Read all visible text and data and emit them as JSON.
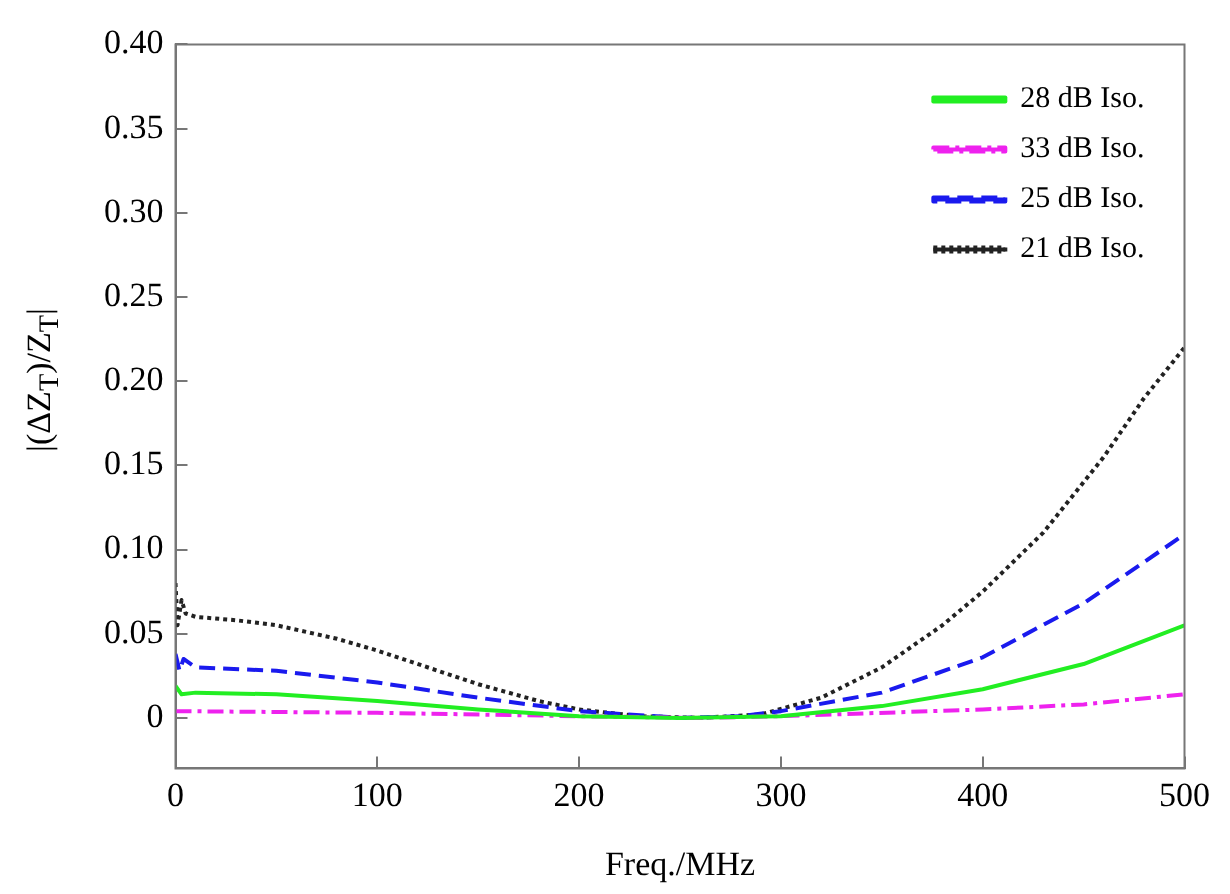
{
  "chart_data": {
    "type": "line",
    "xlabel": "Freq./MHz",
    "ylabel": "|(ΔZ$_{T}$)/Z$_{T}$|",
    "xlim": [
      0,
      500
    ],
    "xticks": [
      0,
      100,
      200,
      300,
      400,
      500
    ],
    "ylim": [
      -0.03,
      0.4
    ],
    "yticks": [
      {
        "value": 0,
        "label": "0"
      },
      {
        "value": 0.05,
        "label": "0.05"
      },
      {
        "value": 0.1,
        "label": "0.10"
      },
      {
        "value": 0.15,
        "label": "0.15"
      },
      {
        "value": 0.2,
        "label": "0.20"
      },
      {
        "value": 0.25,
        "label": "0.25"
      },
      {
        "value": 0.3,
        "label": "0.30"
      },
      {
        "value": 0.35,
        "label": "0.35"
      },
      {
        "value": 0.4,
        "label": "0.40"
      }
    ],
    "grid": false,
    "legend": "top right",
    "marker": "none",
    "series": [
      {
        "name": "28 dB Iso.",
        "color": "#22ee22",
        "line_style": "solid",
        "x": [
          0,
          3,
          10,
          50,
          100,
          150,
          200,
          250,
          300,
          350,
          400,
          450,
          500
        ],
        "values": [
          0.019,
          0.014,
          0.015,
          0.014,
          0.01,
          0.005,
          0.001,
          0,
          0.001,
          0.007,
          0.017,
          0.032,
          0.055
        ]
      },
      {
        "name": "33 dB Iso.",
        "color": "#ee22ee",
        "line_style": "dashdot",
        "x": [
          0,
          100,
          200,
          260,
          300,
          400,
          450,
          500
        ],
        "values": [
          0.004,
          0.003,
          0.001,
          0,
          0.001,
          0.005,
          0.008,
          0.014
        ]
      },
      {
        "name": "25 dB Iso.",
        "color": "#1a1aee",
        "line_style": "dashed",
        "x": [
          0,
          2,
          4,
          10,
          50,
          100,
          150,
          200,
          250,
          280,
          300,
          350,
          400,
          450,
          500
        ],
        "values": [
          0.038,
          0.028,
          0.035,
          0.03,
          0.028,
          0.021,
          0.012,
          0.004,
          0,
          0.001,
          0.004,
          0.015,
          0.036,
          0.068,
          0.109
        ]
      },
      {
        "name": "21 dB Iso.",
        "color": "#222222",
        "line_style": "dotted",
        "x": [
          0,
          1,
          3,
          5,
          10,
          30,
          50,
          80,
          100,
          130,
          150,
          180,
          200,
          230,
          260,
          290,
          320,
          350,
          380,
          400,
          430,
          460,
          480,
          500
        ],
        "values": [
          0.08,
          0.055,
          0.07,
          0.062,
          0.06,
          0.058,
          0.055,
          0.047,
          0.04,
          0.028,
          0.02,
          0.01,
          0.005,
          0.001,
          0,
          0.002,
          0.012,
          0.03,
          0.055,
          0.075,
          0.11,
          0.155,
          0.19,
          0.22
        ]
      }
    ]
  }
}
